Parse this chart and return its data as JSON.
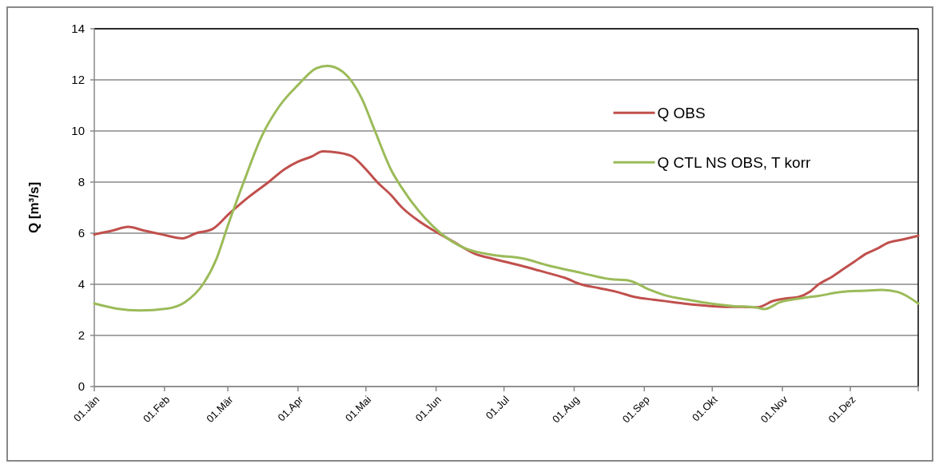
{
  "chart_data": {
    "type": "line",
    "ylabel": "Q [m³/s]",
    "xlim": [
      "--01-01",
      "--12-31"
    ],
    "ylim": [
      0,
      14
    ],
    "yticks": [
      0,
      2,
      4,
      6,
      8,
      10,
      12,
      14
    ],
    "xticks": [
      {
        "value": "--01-01",
        "label": "01.Jän"
      },
      {
        "value": "--02-01",
        "label": "01.Feb"
      },
      {
        "value": "--03-01",
        "label": "01.Mär"
      },
      {
        "value": "--04-01",
        "label": "01.Apr"
      },
      {
        "value": "--05-01",
        "label": "01.Mai"
      },
      {
        "value": "--06-01",
        "label": "01.Jun"
      },
      {
        "value": "--07-01",
        "label": "01.Jul"
      },
      {
        "value": "--08-01",
        "label": "01.Aug"
      },
      {
        "value": "--09-01",
        "label": "01.Sep"
      },
      {
        "value": "--10-01",
        "label": "01.Okt"
      },
      {
        "value": "--11-01",
        "label": "01.Nov"
      },
      {
        "value": "--12-01",
        "label": "01.Dez"
      }
    ],
    "grid": "y",
    "legend": "top right",
    "line_style": "solid",
    "marker": "none",
    "series": [
      {
        "name": "Q OBS",
        "color": "#c0504d",
        "x": [
          "--01-01",
          "--01-09",
          "--01-16",
          "--01-23",
          "--01-31",
          "--02-09",
          "--02-15",
          "--02-22",
          "--03-02",
          "--03-10",
          "--03-19",
          "--03-26",
          "--04-01",
          "--04-07",
          "--04-12",
          "--04-19",
          "--04-25",
          "--05-01",
          "--05-06",
          "--05-12",
          "--05-17",
          "--05-24",
          "--05-31",
          "--06-08",
          "--06-18",
          "--06-26",
          "--07-03",
          "--07-12",
          "--07-20",
          "--07-28",
          "--08-04",
          "--08-12",
          "--08-20",
          "--08-28",
          "--09-05",
          "--09-14",
          "--09-23",
          "--09-30",
          "--10-07",
          "--10-14",
          "--10-21",
          "--10-28",
          "--11-03",
          "--11-08",
          "--11-13",
          "--11-17",
          "--11-23",
          "--11-28",
          "--12-03",
          "--12-08",
          "--12-13",
          "--12-17",
          "--12-24",
          "--12-31"
        ],
        "values": [
          5.95,
          6.1,
          6.25,
          6.1,
          5.95,
          5.8,
          6.0,
          6.15,
          6.8,
          7.4,
          8.0,
          8.5,
          8.8,
          9.0,
          9.2,
          9.15,
          9.0,
          8.5,
          8.0,
          7.5,
          7.0,
          6.5,
          6.1,
          5.7,
          5.2,
          5.0,
          4.85,
          4.65,
          4.45,
          4.25,
          4.0,
          3.85,
          3.7,
          3.5,
          3.4,
          3.3,
          3.2,
          3.15,
          3.12,
          3.12,
          3.1,
          3.35,
          3.45,
          3.5,
          3.7,
          4.0,
          4.3,
          4.6,
          4.9,
          5.2,
          5.4,
          5.6,
          5.75,
          5.9
        ]
      },
      {
        "name": "Q CTL NS OBS, T korr",
        "color": "#9bbb59",
        "x": [
          "--01-01",
          "--01-11",
          "--01-21",
          "--02-02",
          "--02-10",
          "--02-18",
          "--02-24",
          "--03-01",
          "--03-08",
          "--03-16",
          "--03-24",
          "--04-01",
          "--04-09",
          "--04-14",
          "--04-21",
          "--04-29",
          "--05-05",
          "--05-12",
          "--05-19",
          "--05-27",
          "--06-03",
          "--06-14",
          "--06-26",
          "--07-10",
          "--07-20",
          "--08-04",
          "--08-17",
          "--08-25",
          "--09-03",
          "--09-11",
          "--09-20",
          "--09-30",
          "--10-10",
          "--10-20",
          "--10-24",
          "--10-31",
          "--11-09",
          "--11-17",
          "--11-27",
          "--12-07",
          "--12-15",
          "--12-22",
          "--12-31"
        ],
        "values": [
          3.25,
          3.05,
          2.98,
          3.05,
          3.3,
          4.0,
          5.0,
          6.3,
          8.0,
          9.8,
          11.0,
          11.8,
          12.45,
          12.55,
          12.3,
          11.3,
          10.0,
          8.5,
          7.5,
          6.6,
          6.0,
          5.4,
          5.15,
          5.0,
          4.75,
          4.45,
          4.2,
          4.15,
          3.8,
          3.55,
          3.4,
          3.25,
          3.15,
          3.1,
          3.03,
          3.3,
          3.45,
          3.55,
          3.7,
          3.75,
          3.78,
          3.7,
          3.25
        ]
      }
    ]
  }
}
